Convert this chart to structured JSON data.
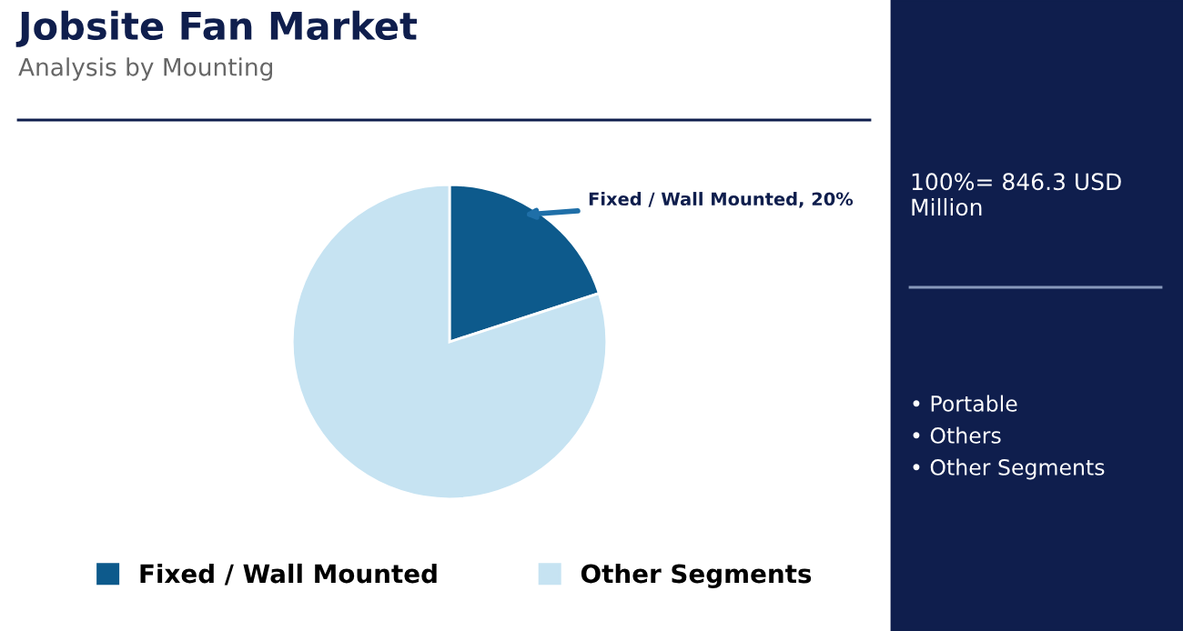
{
  "chart_data": {
    "type": "pie",
    "title": "Jobsite Fan Market",
    "subtitle": "Analysis by Mounting",
    "categories": [
      "Fixed / Wall Mounted",
      "Other Segments"
    ],
    "values": [
      20,
      80
    ],
    "colors": [
      "#0d5a8c",
      "#c6e3f2"
    ],
    "value_labels": [
      "Fixed / Wall Mounted, 20%",
      null
    ],
    "legend": "bottom",
    "annotations": [
      "100%= 846.3 USD Million",
      "• Portable",
      "• Others",
      "• Other Segments"
    ]
  }
}
